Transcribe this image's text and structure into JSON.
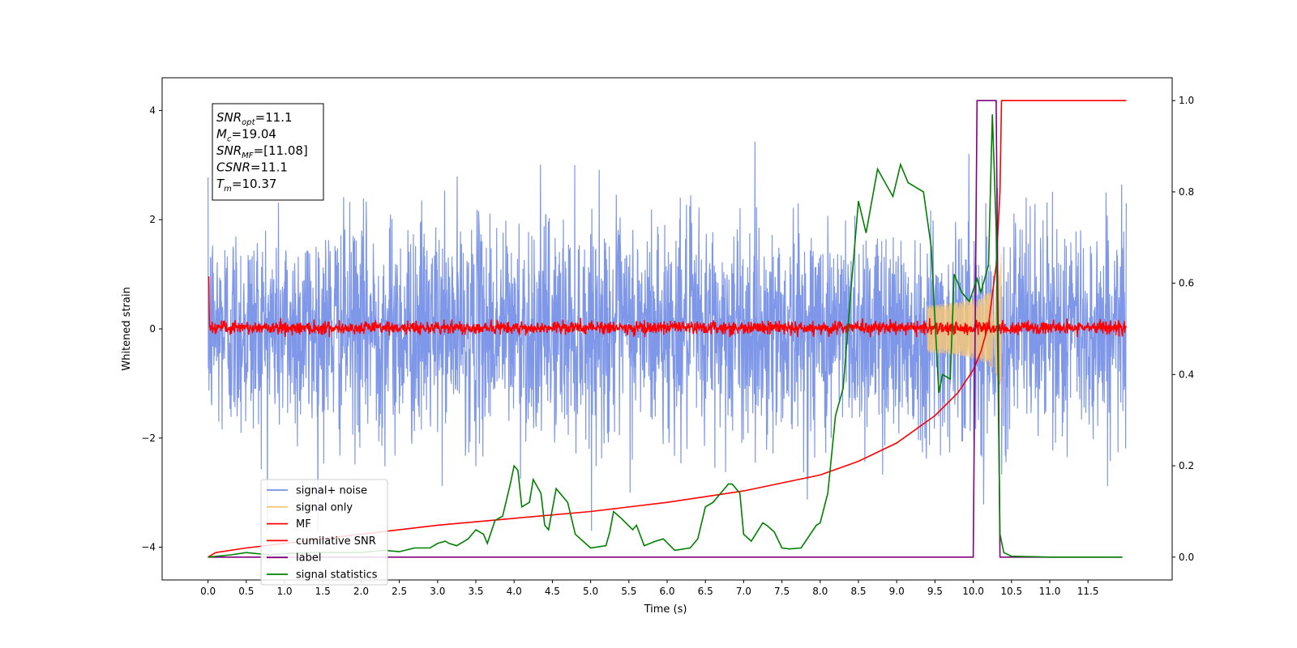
{
  "chart_data": {
    "type": "line",
    "title": "",
    "xlabel": "Time (s)",
    "ylabel": "Whitened strain",
    "xlim": [
      -0.6,
      12.6
    ],
    "ylim": [
      -4.6,
      4.6
    ],
    "y2lim": [
      -0.05,
      1.05
    ],
    "x_ticks": [
      "0.0",
      "0.5",
      "1.0",
      "1.5",
      "2.0",
      "2.5",
      "3.0",
      "3.5",
      "4.0",
      "4.5",
      "5.0",
      "5.5",
      "6.0",
      "6.5",
      "7.0",
      "7.5",
      "8.0",
      "8.5",
      "9.0",
      "9.5",
      "10.0",
      "10.5",
      "11.0",
      "11.5"
    ],
    "y_ticks": [
      "4",
      "2",
      "0",
      "−2",
      "−4"
    ],
    "y2_ticks": [
      "1.0",
      "0.8",
      "0.6",
      "0.4",
      "0.2",
      "0.0"
    ],
    "grid": false,
    "legend_position": "lower-left",
    "annotation": {
      "lines": [
        {
          "sym": "SNR",
          "sub": "opt",
          "value": "=11.1"
        },
        {
          "sym": "M",
          "sub": "c",
          "value": "=19.04"
        },
        {
          "sym": "SNR",
          "sub": "MF",
          "value": "=[11.08]"
        },
        {
          "sym": "CSNR",
          "sub": "",
          "value": "=11.1"
        },
        {
          "sym": "T",
          "sub": "m",
          "value": "=10.37"
        }
      ]
    },
    "series": [
      {
        "name": "signal+ noise",
        "color": "#7891e7",
        "axis": "left",
        "t_range": [
          0.0,
          12.0
        ],
        "amplitude_range": [
          -3.7,
          4.2
        ]
      },
      {
        "name": "signal only",
        "color": "#f5c67a",
        "axis": "left",
        "t_range": [
          9.4,
          10.37
        ],
        "peak_amplitude": 1.9
      },
      {
        "name": "MF",
        "color": "#ff0000",
        "axis": "left",
        "t_range": [
          0.0,
          12.0
        ],
        "amplitude_range": [
          -0.15,
          0.35
        ]
      },
      {
        "name": "cumilative SNR",
        "color": "#ff0000",
        "axis": "right",
        "x": [
          0.0,
          0.1,
          0.5,
          1.0,
          2.0,
          3.0,
          4.0,
          5.0,
          6.0,
          7.0,
          8.0,
          8.5,
          9.0,
          9.5,
          9.8,
          10.0,
          10.1,
          10.2,
          10.3,
          10.35,
          10.37,
          12.0
        ],
        "values": [
          0.0,
          0.01,
          0.02,
          0.03,
          0.05,
          0.07,
          0.085,
          0.1,
          0.12,
          0.145,
          0.18,
          0.21,
          0.25,
          0.31,
          0.36,
          0.41,
          0.45,
          0.51,
          0.64,
          0.8,
          1.0,
          1.0
        ]
      },
      {
        "name": "label",
        "color": "#800080",
        "axis": "right",
        "x": [
          0.0,
          10.0,
          10.05,
          10.3,
          10.35,
          11.95
        ],
        "values": [
          0.0,
          0.0,
          1.0,
          1.0,
          0.0,
          0.0
        ]
      },
      {
        "name": "signal statistics",
        "color": "#008000",
        "axis": "right",
        "x": [
          0.0,
          0.3,
          0.5,
          0.8,
          1.0,
          1.5,
          2.0,
          2.3,
          2.5,
          2.7,
          2.9,
          3.0,
          3.1,
          3.15,
          3.25,
          3.4,
          3.5,
          3.6,
          3.65,
          3.75,
          3.85,
          3.95,
          4.0,
          4.05,
          4.1,
          4.2,
          4.25,
          4.35,
          4.4,
          4.45,
          4.55,
          4.7,
          4.8,
          5.0,
          5.2,
          5.25,
          5.3,
          5.4,
          5.55,
          5.6,
          5.7,
          5.85,
          5.95,
          6.1,
          6.3,
          6.4,
          6.5,
          6.6,
          6.65,
          6.8,
          6.85,
          6.95,
          7.0,
          7.1,
          7.25,
          7.3,
          7.4,
          7.5,
          7.6,
          7.75,
          7.95,
          8.0,
          8.1,
          8.2,
          8.3,
          8.4,
          8.5,
          8.6,
          8.75,
          8.85,
          8.95,
          9.05,
          9.15,
          9.35,
          9.45,
          9.55,
          9.6,
          9.7,
          9.75,
          9.85,
          9.95,
          10.05,
          10.1,
          10.2,
          10.25,
          10.3,
          10.35,
          10.4,
          10.5,
          11.0,
          11.5,
          11.95
        ],
        "values": [
          0.0,
          0.005,
          0.01,
          0.005,
          0.008,
          0.01,
          0.01,
          0.015,
          0.012,
          0.02,
          0.02,
          0.03,
          0.035,
          0.03,
          0.025,
          0.04,
          0.06,
          0.05,
          0.03,
          0.08,
          0.09,
          0.16,
          0.2,
          0.19,
          0.11,
          0.12,
          0.17,
          0.14,
          0.07,
          0.06,
          0.15,
          0.12,
          0.05,
          0.02,
          0.025,
          0.055,
          0.1,
          0.085,
          0.06,
          0.07,
          0.025,
          0.035,
          0.04,
          0.015,
          0.02,
          0.04,
          0.11,
          0.12,
          0.13,
          0.16,
          0.16,
          0.14,
          0.05,
          0.035,
          0.075,
          0.07,
          0.055,
          0.02,
          0.018,
          0.02,
          0.07,
          0.075,
          0.14,
          0.31,
          0.37,
          0.58,
          0.78,
          0.71,
          0.85,
          0.82,
          0.79,
          0.86,
          0.82,
          0.8,
          0.68,
          0.36,
          0.4,
          0.39,
          0.62,
          0.58,
          0.56,
          0.61,
          0.58,
          0.64,
          0.97,
          0.72,
          0.05,
          0.01,
          0.002,
          0.0,
          0.0,
          0.0
        ]
      }
    ]
  }
}
